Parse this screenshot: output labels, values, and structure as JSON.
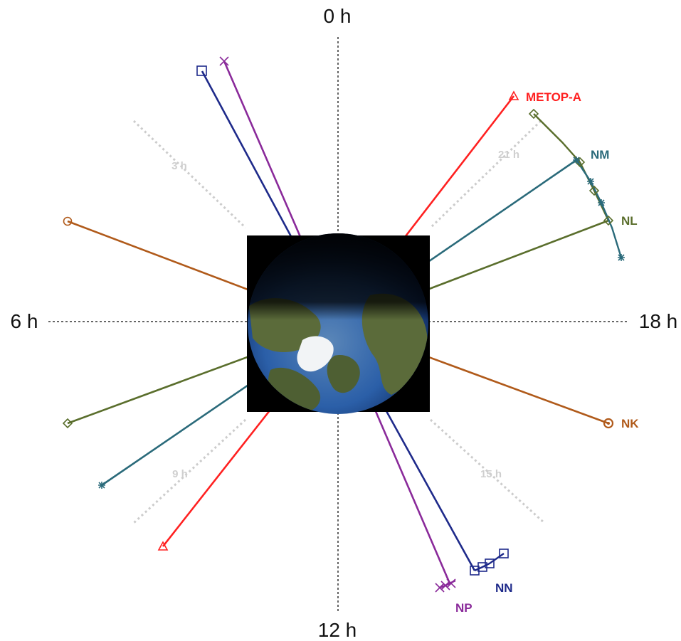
{
  "hour_labels": {
    "h0": "0 h",
    "h6": "6 h",
    "h12": "12 h",
    "h18": "18 h"
  },
  "minor_labels": {
    "h3": "3 h",
    "h9": "9 h",
    "h15": "15 h",
    "h21": "21 h"
  },
  "satellites": [
    {
      "name": "METOP-A",
      "color": "#ff2020",
      "marker": "triangle"
    },
    {
      "name": "NM",
      "color": "#2a6a7a",
      "marker": "asterisk"
    },
    {
      "name": "NL",
      "color": "#5a6e2c",
      "marker": "diamond"
    },
    {
      "name": "NK",
      "color": "#b05a1a",
      "marker": "circle"
    },
    {
      "name": "NN",
      "color": "#1e2a8a",
      "marker": "square"
    },
    {
      "name": "NP",
      "color": "#8a2a9a",
      "marker": "x"
    }
  ],
  "colors": {
    "globe_ocean": "#2b5fa8",
    "globe_land": "#5b6b3a",
    "globe_ice": "#f2f4f6",
    "axis_line": "#333333",
    "minor_axis": "#cccccc"
  },
  "center_image": {
    "icon": "earth-north-pole-globe-icon"
  }
}
